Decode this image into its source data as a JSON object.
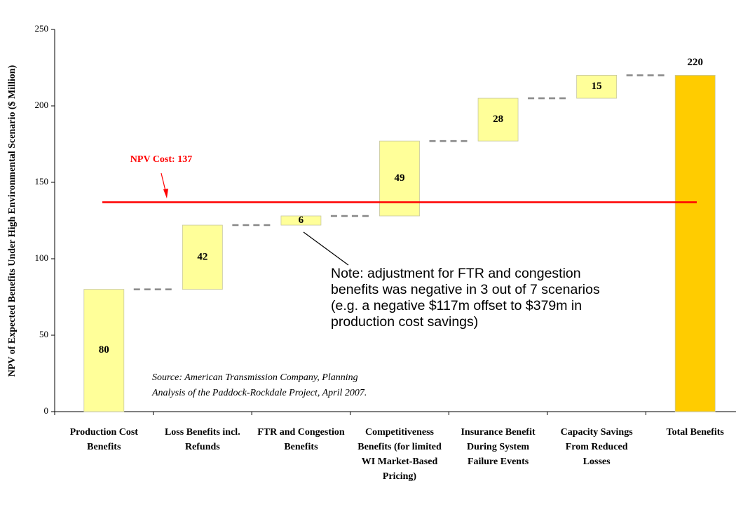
{
  "chart_data": {
    "type": "waterfall",
    "y_label": "NPV of Expected Benefits Under High Environmental Scenario ($ Million)",
    "categories": [
      "Production Cost Benefits",
      "Loss Benefits incl. Refunds",
      "FTR and Congestion Benefits",
      "Competitiveness Benefits (for limited WI Market-Based Pricing)",
      "Insurance Benefit During System Failure Events",
      "Capacity Savings From Reduced Losses",
      "Total Benefits"
    ],
    "values": [
      80,
      42,
      6,
      49,
      28,
      15,
      220
    ],
    "is_total": [
      false,
      false,
      false,
      false,
      false,
      false,
      true
    ],
    "step_color": "#ffff99",
    "total_color": "#ffcc00",
    "ylim": [
      0,
      250
    ],
    "yticks": [
      0,
      50,
      100,
      150,
      200,
      250
    ],
    "reference_line": {
      "label": "NPV Cost: 137",
      "value": 137,
      "color": "#ff0000"
    },
    "note": [
      "Note: adjustment for FTR and congestion",
      "benefits was negative in 3 out of 7 scenarios",
      "(e.g. a negative $117m offset to $379m in",
      "production cost savings)"
    ],
    "source": [
      "Source: American Transmission Company, Planning",
      "Analysis of the Paddock-Rockdale Project, April 2007."
    ]
  }
}
